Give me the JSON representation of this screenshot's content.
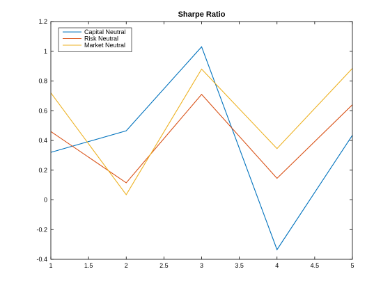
{
  "chart_data": {
    "type": "line",
    "title": "Sharpe Ratio",
    "xlabel": "",
    "ylabel": "",
    "x": [
      1,
      2,
      3,
      4,
      5
    ],
    "xlim": [
      1,
      5
    ],
    "ylim": [
      -0.4,
      1.2
    ],
    "xticks": [
      1,
      1.5,
      2,
      2.5,
      3,
      3.5,
      4,
      4.5,
      5
    ],
    "xtick_labels": [
      "1",
      "1.5",
      "2",
      "2.5",
      "3",
      "3.5",
      "4",
      "4.5",
      "5"
    ],
    "yticks": [
      -0.4,
      -0.2,
      0,
      0.2,
      0.4,
      0.6,
      0.8,
      1,
      1.2
    ],
    "ytick_labels": [
      "-0.4",
      "-0.2",
      "0",
      "0.2",
      "0.4",
      "0.6",
      "0.8",
      "1",
      "1.2"
    ],
    "grid": false,
    "legend_position": "top-left",
    "series": [
      {
        "name": "Capital Neutral",
        "color": "#0072bd",
        "values": [
          0.32,
          0.465,
          1.03,
          -0.335,
          0.435
        ]
      },
      {
        "name": "Risk Neutral",
        "color": "#d95319",
        "values": [
          0.46,
          0.115,
          0.71,
          0.145,
          0.64
        ]
      },
      {
        "name": "Market Neutral",
        "color": "#edb120",
        "values": [
          0.72,
          0.035,
          0.88,
          0.345,
          0.885
        ]
      }
    ]
  }
}
